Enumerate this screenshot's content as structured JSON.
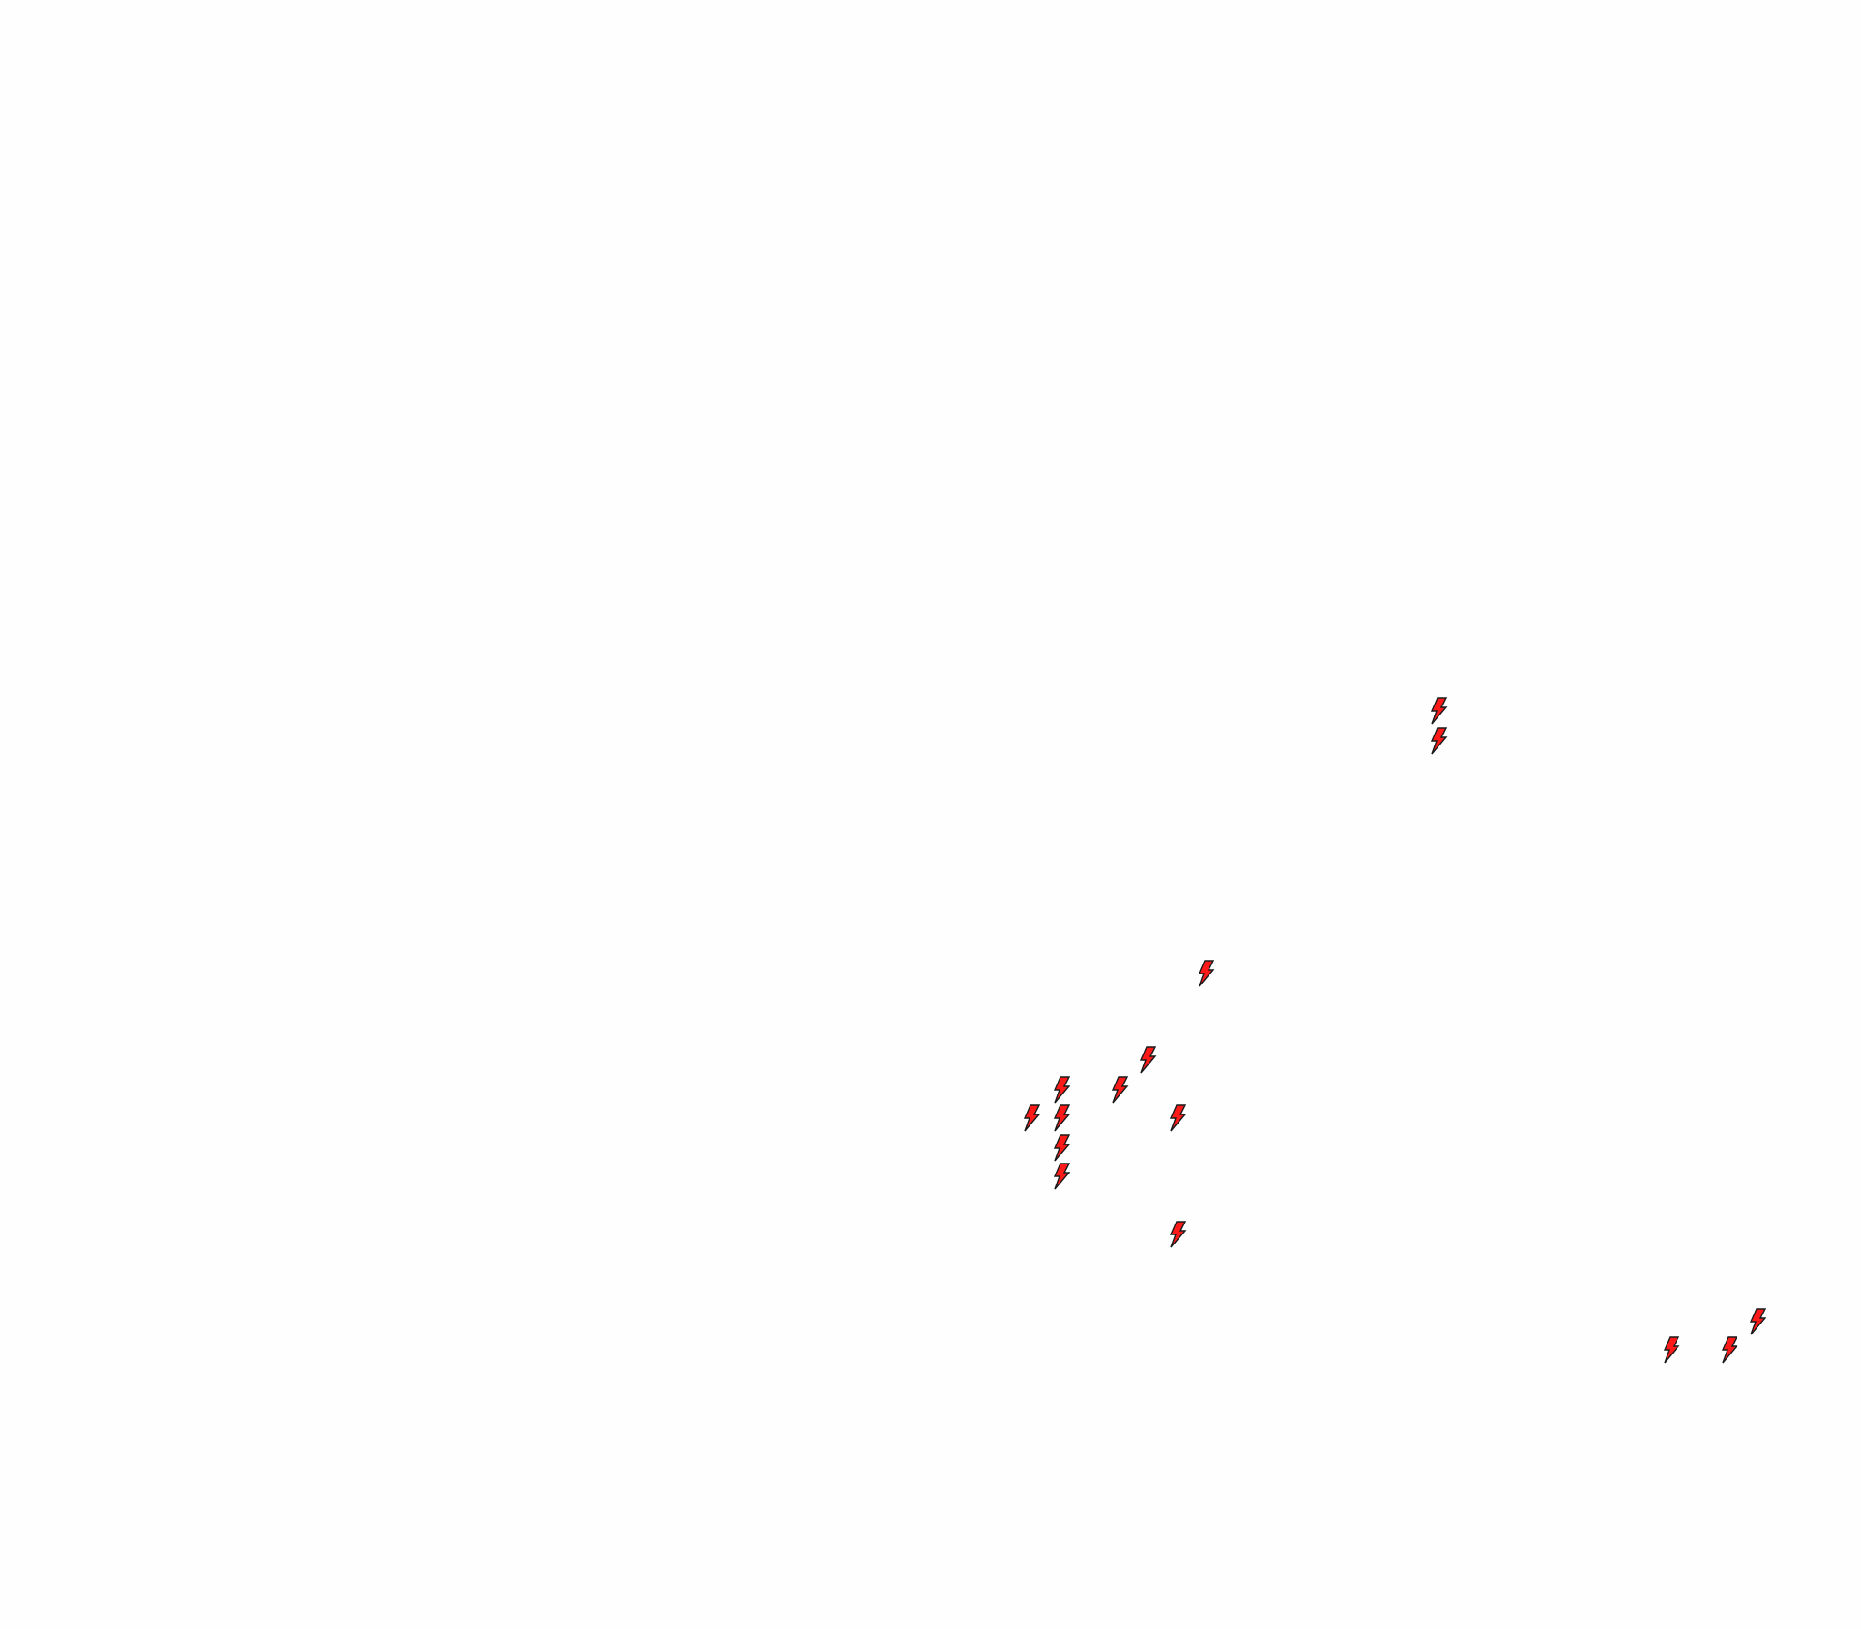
{
  "map": {
    "marker_icon": "lightning-bolt-icon",
    "marker_fill": "#ff1a1a",
    "marker_stroke": "#1a1a1a",
    "background": "#fefefe"
  }
}
